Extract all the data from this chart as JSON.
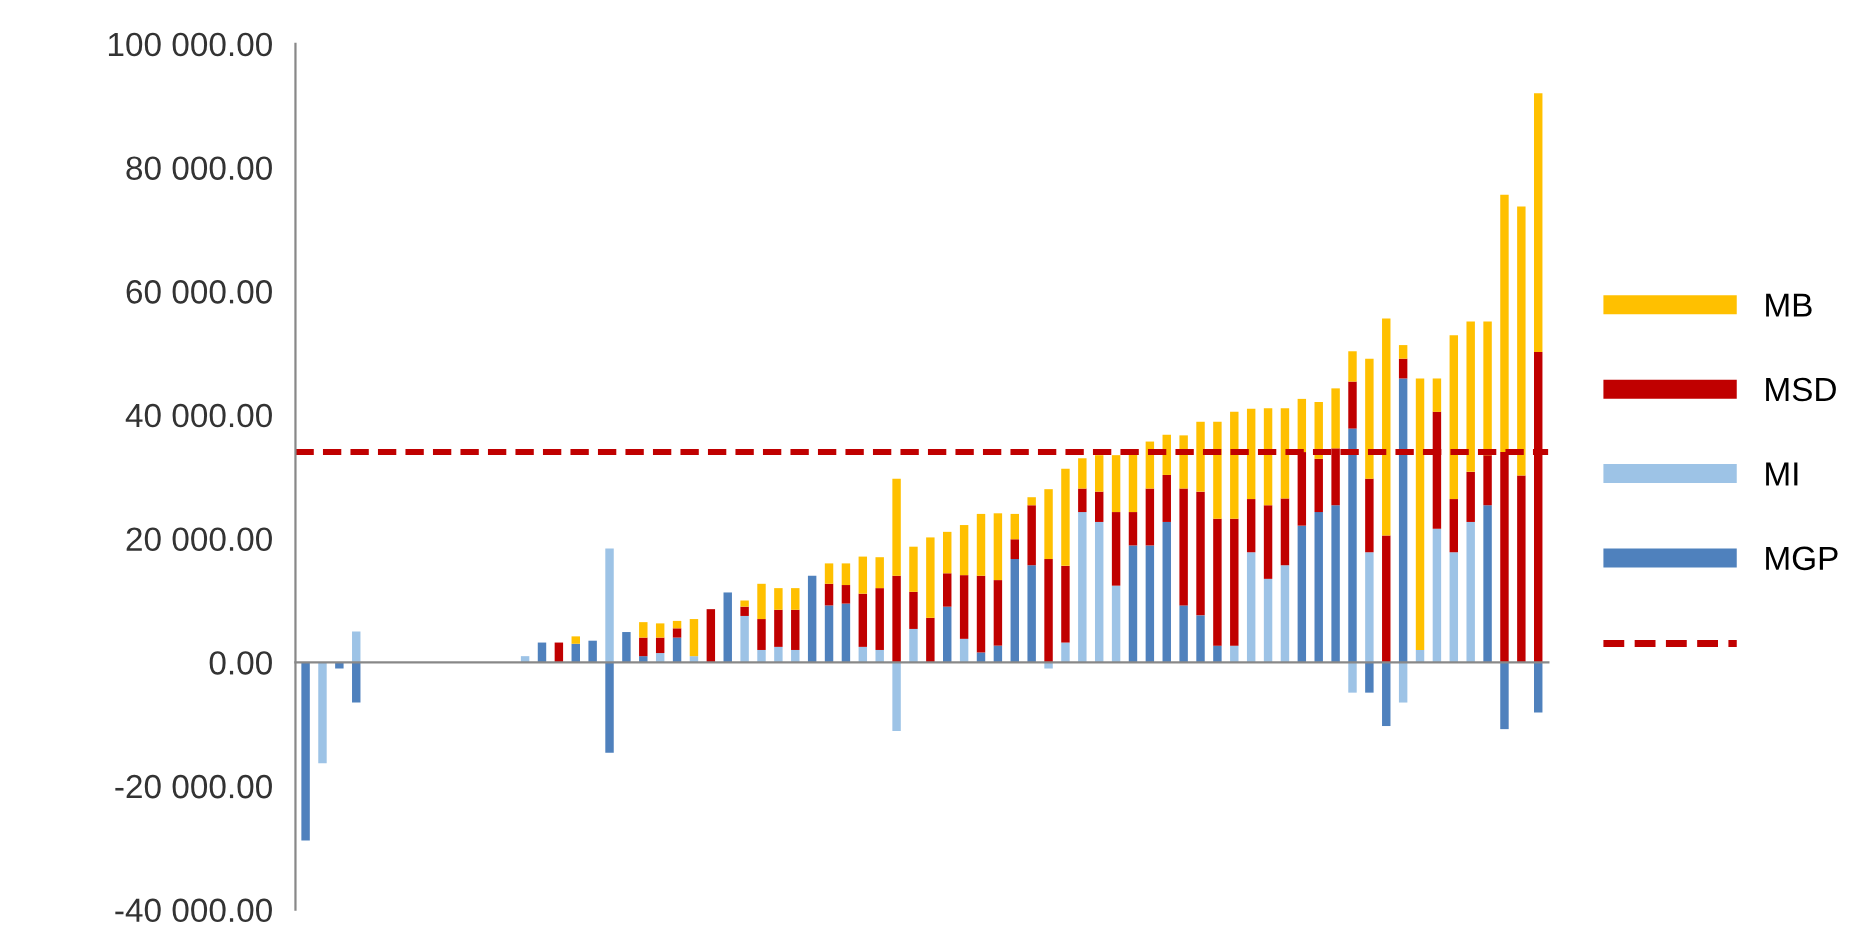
{
  "chart_data": {
    "type": "bar",
    "stacked": true,
    "categories": [
      null,
      null,
      null,
      null,
      null,
      null,
      null,
      null,
      null,
      null,
      null,
      null,
      null,
      null,
      null,
      null,
      null,
      null,
      null,
      null,
      null,
      null,
      null,
      null,
      null,
      null,
      null,
      null,
      null,
      null,
      null,
      null,
      null,
      null,
      null,
      null,
      null,
      null,
      null,
      null,
      null,
      null,
      null,
      null,
      null,
      null,
      null,
      null,
      null,
      null,
      null,
      null,
      null,
      null,
      null,
      null,
      null,
      null,
      null,
      null,
      null,
      null,
      null,
      null,
      null,
      null,
      null,
      null,
      null,
      null,
      null,
      null,
      null,
      null
    ],
    "series": [
      {
        "name": "MGP",
        "color": "#4f81bd",
        "values": [
          -28800,
          null,
          -1000,
          -6500,
          null,
          null,
          null,
          null,
          null,
          null,
          null,
          null,
          null,
          null,
          3200,
          null,
          3000,
          3500,
          -14600,
          4900,
          1000,
          null,
          4000,
          null,
          null,
          11300,
          null,
          null,
          null,
          null,
          14000,
          9200,
          9500,
          null,
          null,
          null,
          null,
          null,
          9000,
          null,
          1600,
          2700,
          16700,
          15700,
          null,
          null,
          null,
          null,
          null,
          18900,
          18900,
          22700,
          9200,
          7600,
          2700,
          null,
          null,
          null,
          null,
          22100,
          24300,
          25400,
          37800,
          -4900,
          -10300,
          45900,
          null,
          null,
          null,
          null,
          25400,
          -10800,
          null,
          -8100
        ]
      },
      {
        "name": "MI",
        "color": "#9dc3e6",
        "values": [
          null,
          -16300,
          null,
          5000,
          null,
          null,
          null,
          null,
          null,
          null,
          null,
          null,
          null,
          1000,
          null,
          null,
          null,
          null,
          18400,
          null,
          null,
          1500,
          null,
          1000,
          null,
          null,
          7500,
          2000,
          2500,
          2000,
          null,
          null,
          null,
          2500,
          2000,
          -11100,
          5400,
          null,
          null,
          3800,
          null,
          null,
          null,
          null,
          -1000,
          3200,
          24300,
          22700,
          12400,
          null,
          null,
          null,
          null,
          null,
          null,
          2700,
          17800,
          13500,
          15700,
          null,
          null,
          null,
          -4900,
          17800,
          null,
          -6500,
          2000,
          21600,
          17800,
          22700,
          null,
          null,
          null,
          null
        ]
      },
      {
        "name": "MSD",
        "color": "#c00000",
        "values": [
          null,
          null,
          null,
          null,
          null,
          null,
          null,
          null,
          null,
          null,
          null,
          null,
          null,
          null,
          null,
          3200,
          null,
          null,
          null,
          null,
          3000,
          2500,
          1500,
          null,
          8600,
          null,
          1500,
          5000,
          6000,
          6500,
          null,
          3500,
          3000,
          8600,
          10000,
          14000,
          6000,
          7200,
          5400,
          10300,
          12400,
          10600,
          3200,
          9700,
          16700,
          12400,
          3800,
          4900,
          11900,
          5400,
          9200,
          7600,
          18900,
          20000,
          20500,
          20500,
          8600,
          11900,
          10800,
          11900,
          8600,
          9200,
          7600,
          11900,
          20500,
          3200,
          null,
          18900,
          8600,
          8100,
          8100,
          34000,
          30200,
          50200
        ]
      },
      {
        "name": "MB",
        "color": "#ffc000",
        "values": [
          null,
          null,
          null,
          null,
          null,
          null,
          null,
          null,
          null,
          null,
          null,
          null,
          null,
          null,
          null,
          null,
          1200,
          null,
          null,
          null,
          2500,
          2300,
          1200,
          6000,
          null,
          null,
          1000,
          5700,
          3500,
          3500,
          null,
          3300,
          3500,
          6000,
          5000,
          15700,
          7300,
          13000,
          6700,
          8100,
          10000,
          10800,
          4100,
          1300,
          11300,
          15700,
          4900,
          5900,
          9200,
          9700,
          7600,
          6500,
          8600,
          11300,
          15700,
          17300,
          14600,
          15700,
          14600,
          8600,
          9200,
          9700,
          4900,
          19400,
          35100,
          2200,
          43900,
          5400,
          26500,
          24300,
          21600,
          41600,
          43500,
          41800
        ]
      }
    ],
    "ylim": [
      -40000,
      100000
    ],
    "yticks": [
      {
        "value": -40000,
        "label": "-40 000.00"
      },
      {
        "value": -20000,
        "label": "-20 000.00"
      },
      {
        "value": 0,
        "label": "0.00"
      },
      {
        "value": 20000,
        "label": "20 000.00"
      },
      {
        "value": 40000,
        "label": "40 000.00"
      },
      {
        "value": 60000,
        "label": "60 000.00"
      },
      {
        "value": 80000,
        "label": "80 000.00"
      },
      {
        "value": 100000,
        "label": "100 000.00"
      }
    ],
    "ref_lines": [
      {
        "axis": "y",
        "value": 34000,
        "color": "#c00000",
        "line_style": "dashed"
      }
    ],
    "legend": "right"
  }
}
